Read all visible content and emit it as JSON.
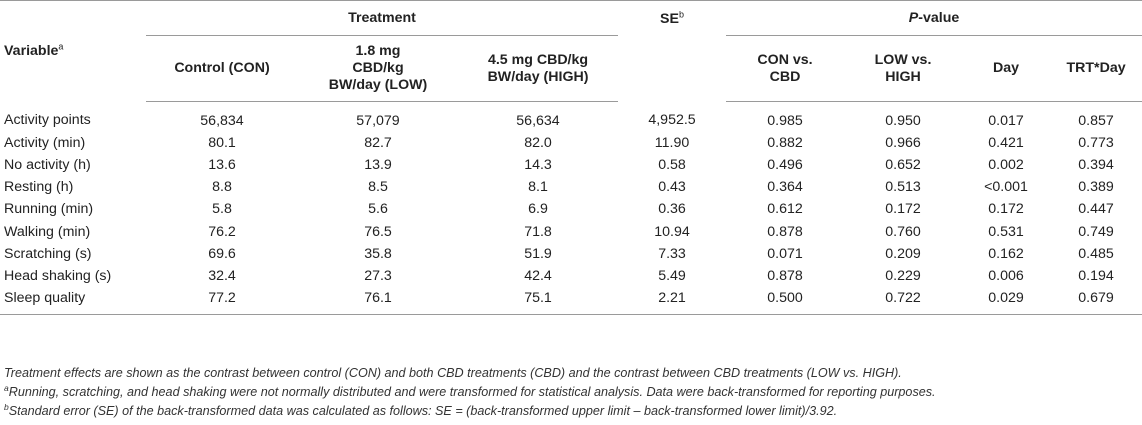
{
  "table": {
    "header": {
      "variable_label": "Variable",
      "variable_sup": "a",
      "treatment_group": "Treatment",
      "se_label": "SE",
      "se_sup": "b",
      "pvalue_group_italic": "P",
      "pvalue_group_rest": "-value",
      "columns": [
        "Control (CON)",
        "1.8 mg CBD/kg BW/day (LOW)",
        "4.5 mg CBD/kg BW/day (HIGH)",
        "CON vs. CBD",
        "LOW vs. HIGH",
        "Day",
        "TRT*Day"
      ]
    },
    "rows": [
      {
        "variable": "Activity points",
        "con": "56,834",
        "low": "57,079",
        "high": "56,634",
        "se": "4,952.5",
        "con_vs_cbd": "0.985",
        "low_vs_high": "0.950",
        "day": "0.017",
        "trt_day": "0.857"
      },
      {
        "variable": "Activity (min)",
        "con": "80.1",
        "low": "82.7",
        "high": "82.0",
        "se": "11.90",
        "con_vs_cbd": "0.882",
        "low_vs_high": "0.966",
        "day": "0.421",
        "trt_day": "0.773"
      },
      {
        "variable": "No activity (h)",
        "con": "13.6",
        "low": "13.9",
        "high": "14.3",
        "se": "0.58",
        "con_vs_cbd": "0.496",
        "low_vs_high": "0.652",
        "day": "0.002",
        "trt_day": "0.394"
      },
      {
        "variable": "Resting (h)",
        "con": "8.8",
        "low": "8.5",
        "high": "8.1",
        "se": "0.43",
        "con_vs_cbd": "0.364",
        "low_vs_high": "0.513",
        "day": "<0.001",
        "trt_day": "0.389"
      },
      {
        "variable": "Running (min)",
        "con": "5.8",
        "low": "5.6",
        "high": "6.9",
        "se": "0.36",
        "con_vs_cbd": "0.612",
        "low_vs_high": "0.172",
        "day": "0.172",
        "trt_day": "0.447"
      },
      {
        "variable": "Walking (min)",
        "con": "76.2",
        "low": "76.5",
        "high": "71.8",
        "se": "10.94",
        "con_vs_cbd": "0.878",
        "low_vs_high": "0.760",
        "day": "0.531",
        "trt_day": "0.749"
      },
      {
        "variable": "Scratching (s)",
        "con": "69.6",
        "low": "35.8",
        "high": "51.9",
        "se": "7.33",
        "con_vs_cbd": "0.071",
        "low_vs_high": "0.209",
        "day": "0.162",
        "trt_day": "0.485"
      },
      {
        "variable": "Head shaking (s)",
        "con": "32.4",
        "low": "27.3",
        "high": "42.4",
        "se": "5.49",
        "con_vs_cbd": "0.878",
        "low_vs_high": "0.229",
        "day": "0.006",
        "trt_day": "0.194"
      },
      {
        "variable": "Sleep quality",
        "con": "77.2",
        "low": "76.1",
        "high": "75.1",
        "se": "2.21",
        "con_vs_cbd": "0.500",
        "low_vs_high": "0.722",
        "day": "0.029",
        "trt_day": "0.679"
      }
    ]
  },
  "notes": {
    "main": "Treatment effects are shown as the contrast between control (CON) and both CBD treatments (CBD) and the contrast between CBD treatments (LOW vs. HIGH).",
    "a_marker": "a",
    "a_text": "Running, scratching, and head shaking were not normally distributed and were transformed for statistical analysis. Data were back-transformed for reporting purposes.",
    "b_marker": "b",
    "b_text": "Standard error (SE) of the back-transformed data was calculated as follows: SE = (back-transformed upper limit – back-transformed lower limit)/3.92."
  }
}
